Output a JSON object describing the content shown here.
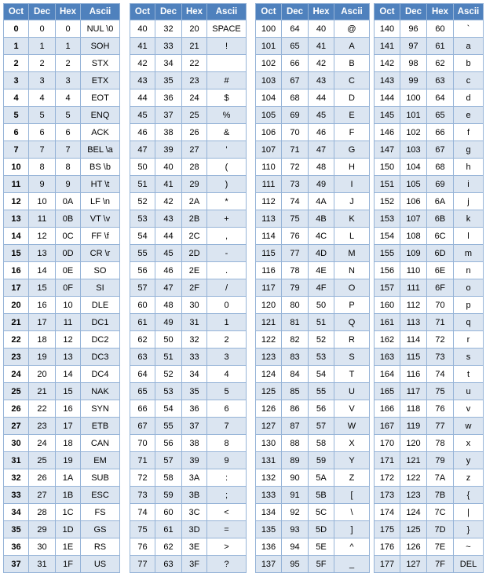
{
  "headers": [
    "Oct",
    "Dec",
    "Hex",
    "Ascii"
  ],
  "tables": [
    [
      [
        "0",
        "0",
        "0",
        "NUL \\0"
      ],
      [
        "1",
        "1",
        "1",
        "SOH"
      ],
      [
        "2",
        "2",
        "2",
        "STX"
      ],
      [
        "3",
        "3",
        "3",
        "ETX"
      ],
      [
        "4",
        "4",
        "4",
        "EOT"
      ],
      [
        "5",
        "5",
        "5",
        "ENQ"
      ],
      [
        "6",
        "6",
        "6",
        "ACK"
      ],
      [
        "7",
        "7",
        "7",
        "BEL \\a"
      ],
      [
        "10",
        "8",
        "8",
        "BS \\b"
      ],
      [
        "11",
        "9",
        "9",
        "HT \\t"
      ],
      [
        "12",
        "10",
        "0A",
        "LF \\n"
      ],
      [
        "13",
        "11",
        "0B",
        "VT \\v"
      ],
      [
        "14",
        "12",
        "0C",
        "FF \\f"
      ],
      [
        "15",
        "13",
        "0D",
        "CR \\r"
      ],
      [
        "16",
        "14",
        "0E",
        "SO"
      ],
      [
        "17",
        "15",
        "0F",
        "SI"
      ],
      [
        "20",
        "16",
        "10",
        "DLE"
      ],
      [
        "21",
        "17",
        "11",
        "DC1"
      ],
      [
        "22",
        "18",
        "12",
        "DC2"
      ],
      [
        "23",
        "19",
        "13",
        "DC3"
      ],
      [
        "24",
        "20",
        "14",
        "DC4"
      ],
      [
        "25",
        "21",
        "15",
        "NAK"
      ],
      [
        "26",
        "22",
        "16",
        "SYN"
      ],
      [
        "27",
        "23",
        "17",
        "ETB"
      ],
      [
        "30",
        "24",
        "18",
        "CAN"
      ],
      [
        "31",
        "25",
        "19",
        "EM"
      ],
      [
        "32",
        "26",
        "1A",
        "SUB"
      ],
      [
        "33",
        "27",
        "1B",
        "ESC"
      ],
      [
        "34",
        "28",
        "1C",
        "FS"
      ],
      [
        "35",
        "29",
        "1D",
        "GS"
      ],
      [
        "36",
        "30",
        "1E",
        "RS"
      ],
      [
        "37",
        "31",
        "1F",
        "US"
      ]
    ],
    [
      [
        "40",
        "32",
        "20",
        "SPACE"
      ],
      [
        "41",
        "33",
        "21",
        "!"
      ],
      [
        "42",
        "34",
        "22",
        ""
      ],
      [
        "43",
        "35",
        "23",
        "#"
      ],
      [
        "44",
        "36",
        "24",
        "$"
      ],
      [
        "45",
        "37",
        "25",
        "%"
      ],
      [
        "46",
        "38",
        "26",
        "&"
      ],
      [
        "47",
        "39",
        "27",
        "'"
      ],
      [
        "50",
        "40",
        "28",
        "("
      ],
      [
        "51",
        "41",
        "29",
        ")"
      ],
      [
        "52",
        "42",
        "2A",
        "*"
      ],
      [
        "53",
        "43",
        "2B",
        "+"
      ],
      [
        "54",
        "44",
        "2C",
        ","
      ],
      [
        "55",
        "45",
        "2D",
        "-"
      ],
      [
        "56",
        "46",
        "2E",
        "."
      ],
      [
        "57",
        "47",
        "2F",
        "/"
      ],
      [
        "60",
        "48",
        "30",
        "0"
      ],
      [
        "61",
        "49",
        "31",
        "1"
      ],
      [
        "62",
        "50",
        "32",
        "2"
      ],
      [
        "63",
        "51",
        "33",
        "3"
      ],
      [
        "64",
        "52",
        "34",
        "4"
      ],
      [
        "65",
        "53",
        "35",
        "5"
      ],
      [
        "66",
        "54",
        "36",
        "6"
      ],
      [
        "67",
        "55",
        "37",
        "7"
      ],
      [
        "70",
        "56",
        "38",
        "8"
      ],
      [
        "71",
        "57",
        "39",
        "9"
      ],
      [
        "72",
        "58",
        "3A",
        ":"
      ],
      [
        "73",
        "59",
        "3B",
        ";"
      ],
      [
        "74",
        "60",
        "3C",
        "<"
      ],
      [
        "75",
        "61",
        "3D",
        "="
      ],
      [
        "76",
        "62",
        "3E",
        ">"
      ],
      [
        "77",
        "63",
        "3F",
        "?"
      ]
    ],
    [
      [
        "100",
        "64",
        "40",
        "@"
      ],
      [
        "101",
        "65",
        "41",
        "A"
      ],
      [
        "102",
        "66",
        "42",
        "B"
      ],
      [
        "103",
        "67",
        "43",
        "C"
      ],
      [
        "104",
        "68",
        "44",
        "D"
      ],
      [
        "105",
        "69",
        "45",
        "E"
      ],
      [
        "106",
        "70",
        "46",
        "F"
      ],
      [
        "107",
        "71",
        "47",
        "G"
      ],
      [
        "110",
        "72",
        "48",
        "H"
      ],
      [
        "111",
        "73",
        "49",
        "I"
      ],
      [
        "112",
        "74",
        "4A",
        "J"
      ],
      [
        "113",
        "75",
        "4B",
        "K"
      ],
      [
        "114",
        "76",
        "4C",
        "L"
      ],
      [
        "115",
        "77",
        "4D",
        "M"
      ],
      [
        "116",
        "78",
        "4E",
        "N"
      ],
      [
        "117",
        "79",
        "4F",
        "O"
      ],
      [
        "120",
        "80",
        "50",
        "P"
      ],
      [
        "121",
        "81",
        "51",
        "Q"
      ],
      [
        "122",
        "82",
        "52",
        "R"
      ],
      [
        "123",
        "83",
        "53",
        "S"
      ],
      [
        "124",
        "84",
        "54",
        "T"
      ],
      [
        "125",
        "85",
        "55",
        "U"
      ],
      [
        "126",
        "86",
        "56",
        "V"
      ],
      [
        "127",
        "87",
        "57",
        "W"
      ],
      [
        "130",
        "88",
        "58",
        "X"
      ],
      [
        "131",
        "89",
        "59",
        "Y"
      ],
      [
        "132",
        "90",
        "5A",
        "Z"
      ],
      [
        "133",
        "91",
        "5B",
        "["
      ],
      [
        "134",
        "92",
        "5C",
        "\\"
      ],
      [
        "135",
        "93",
        "5D",
        "]"
      ],
      [
        "136",
        "94",
        "5E",
        "^"
      ],
      [
        "137",
        "95",
        "5F",
        "_"
      ]
    ],
    [
      [
        "140",
        "96",
        "60",
        "`"
      ],
      [
        "141",
        "97",
        "61",
        "a"
      ],
      [
        "142",
        "98",
        "62",
        "b"
      ],
      [
        "143",
        "99",
        "63",
        "c"
      ],
      [
        "144",
        "100",
        "64",
        "d"
      ],
      [
        "145",
        "101",
        "65",
        "e"
      ],
      [
        "146",
        "102",
        "66",
        "f"
      ],
      [
        "147",
        "103",
        "67",
        "g"
      ],
      [
        "150",
        "104",
        "68",
        "h"
      ],
      [
        "151",
        "105",
        "69",
        "i"
      ],
      [
        "152",
        "106",
        "6A",
        "j"
      ],
      [
        "153",
        "107",
        "6B",
        "k"
      ],
      [
        "154",
        "108",
        "6C",
        "l"
      ],
      [
        "155",
        "109",
        "6D",
        "m"
      ],
      [
        "156",
        "110",
        "6E",
        "n"
      ],
      [
        "157",
        "111",
        "6F",
        "o"
      ],
      [
        "160",
        "112",
        "70",
        "p"
      ],
      [
        "161",
        "113",
        "71",
        "q"
      ],
      [
        "162",
        "114",
        "72",
        "r"
      ],
      [
        "163",
        "115",
        "73",
        "s"
      ],
      [
        "164",
        "116",
        "74",
        "t"
      ],
      [
        "165",
        "117",
        "75",
        "u"
      ],
      [
        "166",
        "118",
        "76",
        "v"
      ],
      [
        "167",
        "119",
        "77",
        "w"
      ],
      [
        "170",
        "120",
        "78",
        "x"
      ],
      [
        "171",
        "121",
        "79",
        "y"
      ],
      [
        "172",
        "122",
        "7A",
        "z"
      ],
      [
        "173",
        "123",
        "7B",
        "{"
      ],
      [
        "174",
        "124",
        "7C",
        "|"
      ],
      [
        "175",
        "125",
        "7D",
        "}"
      ],
      [
        "176",
        "126",
        "7E",
        "~"
      ],
      [
        "177",
        "127",
        "7F",
        "DEL"
      ]
    ]
  ],
  "colors": {
    "header": "#4f81bd",
    "stripe": "#dbe5f1",
    "border": "#95b3d7"
  }
}
